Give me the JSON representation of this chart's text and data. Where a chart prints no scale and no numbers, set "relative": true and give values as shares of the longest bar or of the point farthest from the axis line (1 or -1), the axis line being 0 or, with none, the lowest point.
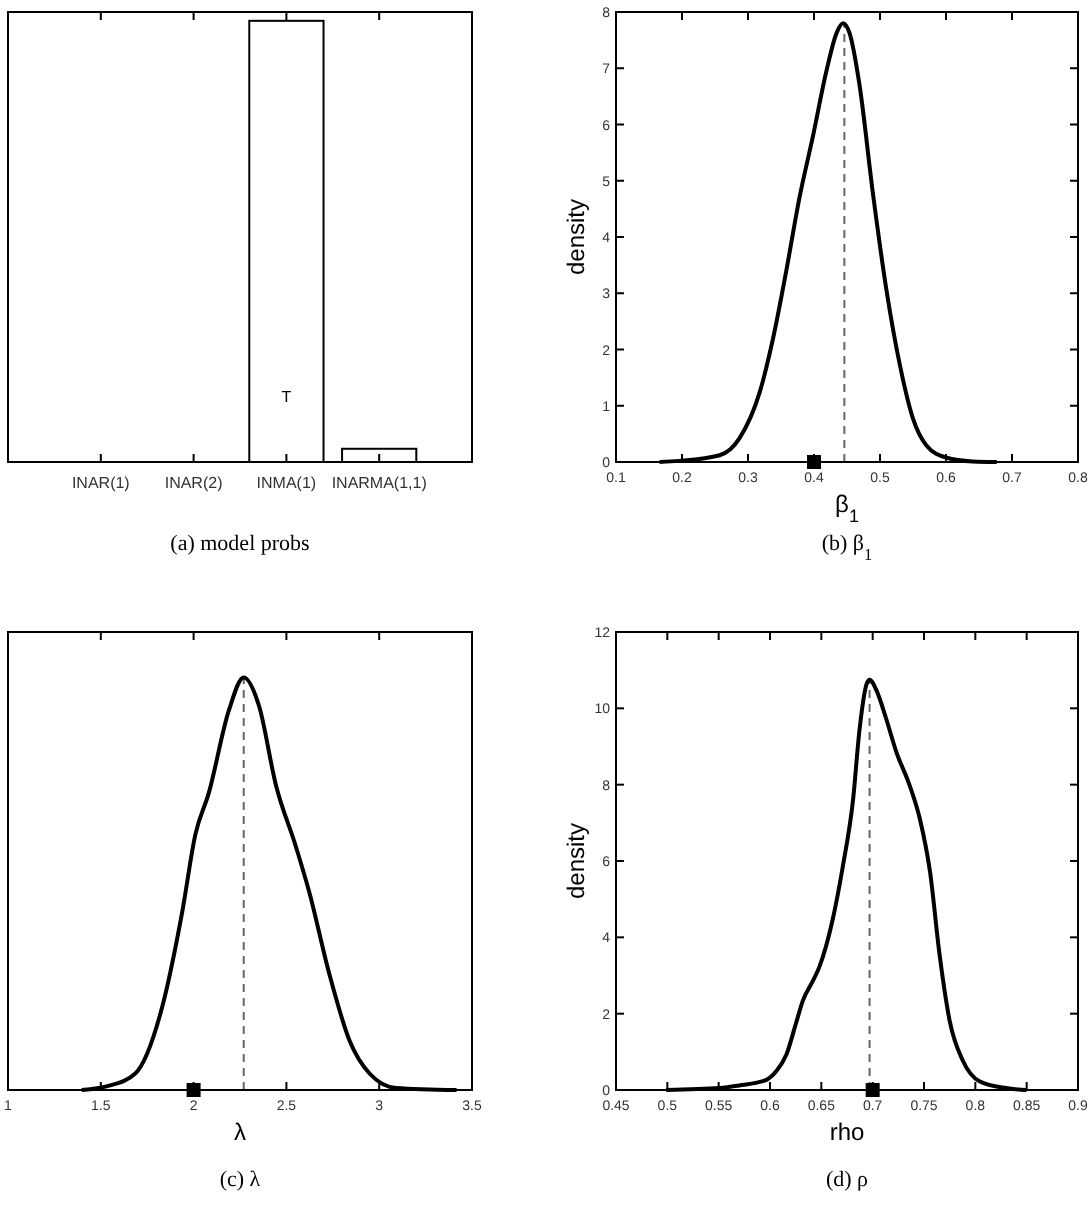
{
  "chart_data": [
    {
      "type": "bar",
      "relative": true,
      "categories": [
        "INAR(1)",
        "INAR(2)",
        "INMA(1)",
        "INARMA(1,1)"
      ],
      "values": [
        0,
        0,
        1,
        0.03
      ],
      "color": "#ffffff",
      "annotations": [
        "T",
        "(a) model probs"
      ]
    },
    {
      "type": "line",
      "xlabel": "β$_{1}$",
      "ylabel": "density",
      "xlim": [
        0.1,
        0.8
      ],
      "xticks": [
        0.1,
        0.2,
        0.3,
        0.4,
        0.5,
        0.6,
        0.7,
        0.8
      ],
      "ylim": [
        0,
        8
      ],
      "yticks": [
        0,
        1,
        2,
        3,
        4,
        5,
        6,
        7,
        8
      ],
      "series": [
        {
          "type": "line",
          "color": "#000000",
          "x": [
            0.166,
            0.196,
            0.257,
            0.287,
            0.318,
            0.338,
            0.358,
            0.378,
            0.398,
            0.419,
            0.434,
            0.444,
            0.454,
            0.469,
            0.489,
            0.51,
            0.53,
            0.55,
            0.57,
            0.6,
            0.64,
            0.677
          ],
          "values": [
            0,
            0.02,
            0.12,
            0.42,
            1.25,
            2.2,
            3.4,
            4.7,
            5.77,
            6.96,
            7.62,
            7.8,
            7.62,
            6.7,
            4.8,
            3.04,
            1.73,
            0.77,
            0.3,
            0.08,
            0.01,
            0
          ]
        },
        {
          "type": "scatter",
          "marker": "square",
          "color": "#000000",
          "x": [
            0.4
          ],
          "values": [
            0
          ]
        }
      ],
      "ref_lines": [
        {
          "axis": "x",
          "value": 0.446,
          "color": "#666666",
          "line_style": "dashed"
        }
      ],
      "annotations": [
        "(b) β$_{1}$"
      ]
    },
    {
      "type": "line",
      "relative": true,
      "xlabel": "λ",
      "xlim": [
        1,
        3.5
      ],
      "xticks": [
        1,
        1.5,
        2,
        2.5,
        3,
        3.5
      ],
      "series": [
        {
          "type": "line",
          "color": "#000000",
          "x": [
            1.397,
            1.541,
            1.686,
            1.83,
            1.938,
            2.01,
            2.082,
            2.19,
            2.27,
            2.353,
            2.443,
            2.551,
            2.623,
            2.732,
            2.84,
            2.948,
            3.09,
            3.417
          ],
          "values": [
            0,
            0.01,
            0.04,
            0.2,
            0.43,
            0.62,
            0.72,
            0.92,
            1,
            0.93,
            0.74,
            0.59,
            0.48,
            0.28,
            0.12,
            0.04,
            0.005,
            0
          ]
        },
        {
          "type": "scatter",
          "marker": "square",
          "color": "#000000",
          "x": [
            2
          ],
          "values": [
            0
          ]
        }
      ],
      "ref_lines": [
        {
          "axis": "x",
          "value": 2.27,
          "color": "#666666",
          "line_style": "dashed"
        }
      ],
      "annotations": [
        "(c) λ"
      ]
    },
    {
      "type": "line",
      "xlabel": "rho",
      "ylabel": "density",
      "xlim": [
        0.45,
        0.9
      ],
      "xticks": [
        0.45,
        0.5,
        0.55,
        0.6,
        0.65,
        0.7,
        0.75,
        0.8,
        0.85,
        0.9
      ],
      "ylim": [
        0,
        12
      ],
      "yticks": [
        0,
        2,
        4,
        6,
        8,
        10,
        12
      ],
      "series": [
        {
          "type": "line",
          "color": "#000000",
          "x": [
            0.499,
            0.551,
            0.57,
            0.596,
            0.606,
            0.616,
            0.626,
            0.632,
            0.642,
            0.648,
            0.661,
            0.671,
            0.681,
            0.687,
            0.694,
            0.697,
            0.704,
            0.713,
            0.723,
            0.736,
            0.746,
            0.756,
            0.765,
            0.775,
            0.788,
            0.804,
            0.83,
            0.85
          ],
          "values": [
            0,
            0.05,
            0.12,
            0.26,
            0.49,
            0.93,
            1.81,
            2.34,
            2.87,
            3.22,
            4.46,
            5.87,
            7.63,
            9.39,
            10.63,
            10.75,
            10.45,
            9.74,
            8.86,
            7.98,
            7.1,
            5.69,
            3.58,
            1.81,
            0.76,
            0.23,
            0.05,
            0
          ]
        },
        {
          "type": "scatter",
          "marker": "square",
          "color": "#000000",
          "x": [
            0.7
          ],
          "values": [
            0
          ]
        }
      ],
      "ref_lines": [
        {
          "axis": "x",
          "value": 0.697,
          "color": "#666666",
          "line_style": "dashed"
        }
      ],
      "annotations": [
        "(d) ρ"
      ]
    }
  ]
}
